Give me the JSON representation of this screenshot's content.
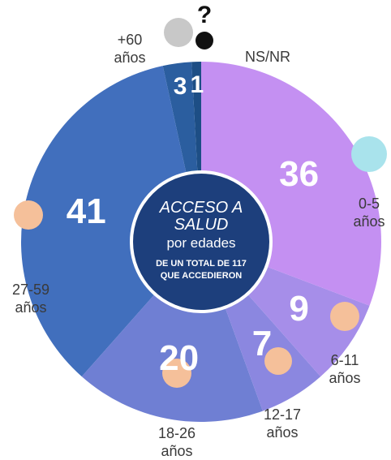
{
  "chart_data": {
    "type": "donut",
    "title": "ACCESO A SALUD",
    "subtitle": "por edades",
    "annotation": "DE UN TOTAL DE 117 QUE ACCEDIERON",
    "categories": [
      "0-5 años",
      "6-11 años",
      "12-17 años",
      "18-26 años",
      "27-59 años",
      "+60 años",
      "NS/NR"
    ],
    "values": [
      36,
      9,
      7,
      20,
      41,
      3,
      1
    ],
    "colors": [
      "#c490f2",
      "#a68ee9",
      "#8b87e0",
      "#6f7fd3",
      "#416fbd",
      "#2b5e9f",
      "#1d4e85"
    ]
  }
}
